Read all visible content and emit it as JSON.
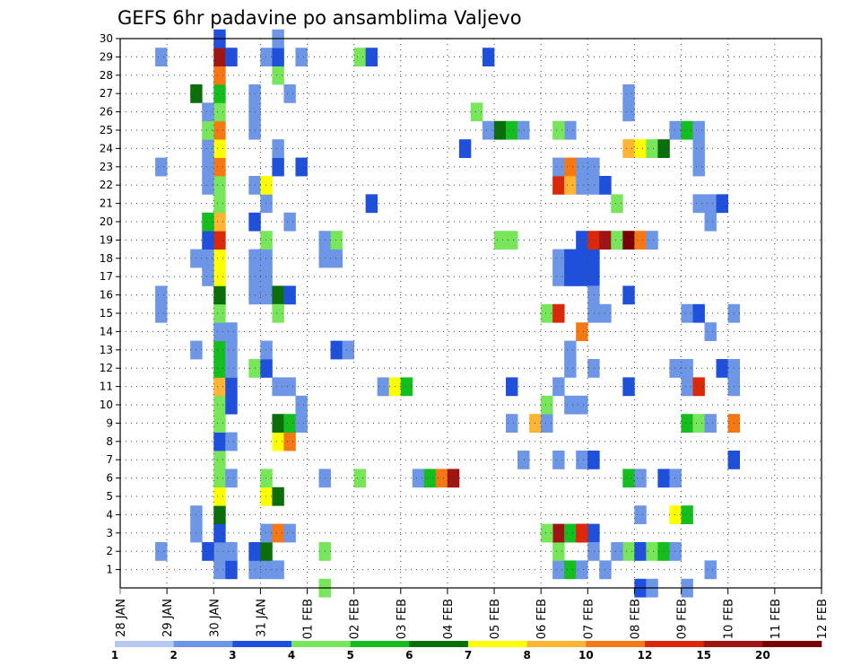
{
  "chart_data": {
    "type": "heatmap",
    "title": "GEFS 6hr padavine po ansamblima Valjevo",
    "y_ticks": [
      "1",
      "2",
      "3",
      "4",
      "5",
      "6",
      "7",
      "8",
      "9",
      "10",
      "11",
      "12",
      "13",
      "14",
      "15",
      "16",
      "17",
      "18",
      "19",
      "20",
      "21",
      "22",
      "23",
      "24",
      "25",
      "26",
      "27",
      "28",
      "29",
      "30"
    ],
    "x_ticks": [
      "28 JAN",
      "29 JAN",
      "30 JAN",
      "31 JAN",
      "01 FEB",
      "02 FEB",
      "03 FEB",
      "04 FEB",
      "05 FEB",
      "06 FEB",
      "07 FEB",
      "08 FEB",
      "09 FEB",
      "10 FEB",
      "11 FEB",
      "12 FEB"
    ],
    "colorbar": {
      "labels": [
        "1",
        "2",
        "3",
        "4",
        "5",
        "6",
        "7",
        "8",
        "10",
        "12",
        "15",
        "20"
      ],
      "colors": [
        "#b4c8f0",
        "#6e96e6",
        "#1e50dc",
        "#78e65a",
        "#14be1e",
        "#0a6e0a",
        "#ffff00",
        "#ffb432",
        "#f57814",
        "#dc280a",
        "#a01414",
        "#780000"
      ]
    },
    "cells": [
      [
        8,
        1,
        1
      ],
      [
        8,
        2,
        1
      ],
      [
        8,
        3,
        2
      ],
      [
        8,
        4,
        5
      ],
      [
        8,
        5,
        6
      ],
      [
        8,
        6,
        3
      ],
      [
        8,
        7,
        3
      ],
      [
        8,
        8,
        2
      ],
      [
        8,
        9,
        3
      ],
      [
        8,
        10,
        3
      ],
      [
        8,
        11,
        7
      ],
      [
        8,
        12,
        4
      ],
      [
        8,
        13,
        4
      ],
      [
        8,
        14,
        1
      ],
      [
        8,
        15,
        3
      ],
      [
        8,
        16,
        5
      ],
      [
        8,
        17,
        6
      ],
      [
        8,
        18,
        6
      ],
      [
        8,
        19,
        9
      ],
      [
        8,
        20,
        7
      ],
      [
        8,
        21,
        3
      ],
      [
        8,
        22,
        3
      ],
      [
        8,
        23,
        8
      ],
      [
        8,
        24,
        6
      ],
      [
        8,
        25,
        8
      ],
      [
        8,
        26,
        3
      ],
      [
        8,
        27,
        4
      ],
      [
        8,
        28,
        8
      ],
      [
        8,
        29,
        10
      ],
      [
        8,
        30,
        2
      ],
      [
        9,
        1,
        2
      ],
      [
        9,
        2,
        1
      ],
      [
        9,
        6,
        1
      ],
      [
        9,
        8,
        1
      ],
      [
        9,
        10,
        2
      ],
      [
        9,
        11,
        2
      ],
      [
        9,
        12,
        1
      ],
      [
        9,
        13,
        1
      ],
      [
        9,
        14,
        1
      ],
      [
        9,
        29,
        2
      ],
      [
        7,
        2,
        2
      ],
      [
        7,
        17,
        1
      ],
      [
        7,
        18,
        1
      ],
      [
        7,
        19,
        2
      ],
      [
        7,
        20,
        4
      ],
      [
        7,
        22,
        1
      ],
      [
        7,
        23,
        1
      ],
      [
        7,
        24,
        1
      ],
      [
        7,
        25,
        3
      ],
      [
        7,
        26,
        1
      ],
      [
        6,
        27,
        5
      ],
      [
        3,
        2,
        1
      ],
      [
        3,
        15,
        1
      ],
      [
        3,
        16,
        1
      ],
      [
        6,
        3,
        1
      ],
      [
        6,
        4,
        1
      ],
      [
        6,
        13,
        1
      ],
      [
        6,
        18,
        1
      ],
      [
        3,
        23,
        1
      ],
      [
        3,
        29,
        1
      ],
      [
        11,
        1,
        1
      ],
      [
        12,
        1,
        1
      ],
      [
        13,
        1,
        1
      ],
      [
        11,
        2,
        2
      ],
      [
        12,
        2,
        5
      ],
      [
        12,
        3,
        1
      ],
      [
        12,
        5,
        6
      ],
      [
        13,
        5,
        5
      ],
      [
        12,
        6,
        3
      ],
      [
        13,
        3,
        8
      ],
      [
        14,
        3,
        1
      ],
      [
        13,
        8,
        6
      ],
      [
        14,
        8,
        8
      ],
      [
        13,
        9,
        5
      ],
      [
        14,
        9,
        4
      ],
      [
        15,
        9,
        1
      ],
      [
        15,
        10,
        1
      ],
      [
        13,
        11,
        1
      ],
      [
        14,
        11,
        1
      ],
      [
        11,
        12,
        3
      ],
      [
        12,
        12,
        2
      ],
      [
        12,
        13,
        1
      ],
      [
        11,
        16,
        1
      ],
      [
        12,
        16,
        1
      ],
      [
        13,
        16,
        5
      ],
      [
        14,
        16,
        2
      ],
      [
        11,
        17,
        1
      ],
      [
        12,
        17,
        1
      ],
      [
        11,
        18,
        1
      ],
      [
        12,
        18,
        1
      ],
      [
        12,
        19,
        3
      ],
      [
        11,
        20,
        2
      ],
      [
        12,
        21,
        1
      ],
      [
        11,
        22,
        1
      ],
      [
        12,
        22,
        6
      ],
      [
        13,
        23,
        2
      ],
      [
        13,
        24,
        1
      ],
      [
        11,
        25,
        1
      ],
      [
        11,
        26,
        1
      ],
      [
        11,
        27,
        1
      ],
      [
        14,
        27,
        1
      ],
      [
        13,
        28,
        3
      ],
      [
        12,
        29,
        1
      ],
      [
        13,
        29,
        2
      ],
      [
        13,
        30,
        1
      ],
      [
        15,
        29,
        1
      ],
      [
        14,
        20,
        1
      ],
      [
        15,
        23,
        2
      ],
      [
        13,
        15,
        3
      ],
      [
        17,
        0,
        3
      ],
      [
        17,
        2,
        3
      ],
      [
        17,
        6,
        1
      ],
      [
        18,
        13,
        2
      ],
      [
        19,
        13,
        1
      ],
      [
        17,
        18,
        1
      ],
      [
        18,
        18,
        1
      ],
      [
        17,
        19,
        1
      ],
      [
        18,
        19,
        3
      ],
      [
        20,
        6,
        3
      ],
      [
        22,
        11,
        1
      ],
      [
        23,
        11,
        6
      ],
      [
        24,
        11,
        4
      ],
      [
        20,
        29,
        3
      ],
      [
        21,
        29,
        2
      ],
      [
        21,
        21,
        2
      ],
      [
        25,
        6,
        1
      ],
      [
        26,
        6,
        4
      ],
      [
        27,
        6,
        8
      ],
      [
        28,
        6,
        10
      ],
      [
        29,
        24,
        2
      ],
      [
        30,
        26,
        3
      ],
      [
        31,
        25,
        1
      ],
      [
        31,
        29,
        2
      ],
      [
        32,
        25,
        5
      ],
      [
        33,
        25,
        4
      ],
      [
        34,
        25,
        1
      ],
      [
        32,
        19,
        3
      ],
      [
        33,
        19,
        3
      ],
      [
        33,
        9,
        1
      ],
      [
        33,
        11,
        2
      ],
      [
        34,
        7,
        1
      ],
      [
        35,
        9,
        7
      ],
      [
        36,
        9,
        1
      ],
      [
        36,
        10,
        3
      ],
      [
        36,
        15,
        3
      ],
      [
        37,
        15,
        9
      ],
      [
        37,
        1,
        1
      ],
      [
        38,
        1,
        4
      ],
      [
        39,
        1,
        1
      ],
      [
        37,
        2,
        3
      ],
      [
        37,
        3,
        10
      ],
      [
        38,
        3,
        4
      ],
      [
        39,
        3,
        9
      ],
      [
        40,
        3,
        2
      ],
      [
        36,
        3,
        3
      ],
      [
        37,
        7,
        1
      ],
      [
        37,
        11,
        1
      ],
      [
        37,
        17,
        1
      ],
      [
        37,
        18,
        1
      ],
      [
        38,
        17,
        2
      ],
      [
        39,
        17,
        2
      ],
      [
        40,
        17,
        2
      ],
      [
        38,
        18,
        2
      ],
      [
        39,
        18,
        2
      ],
      [
        40,
        18,
        2
      ],
      [
        37,
        22,
        9
      ],
      [
        38,
        22,
        7
      ],
      [
        37,
        23,
        1
      ],
      [
        39,
        23,
        1
      ],
      [
        40,
        23,
        1
      ],
      [
        39,
        22,
        1
      ],
      [
        40,
        22,
        1
      ],
      [
        38,
        23,
        8
      ],
      [
        38,
        25,
        1
      ],
      [
        37,
        25,
        3
      ],
      [
        38,
        10,
        1
      ],
      [
        39,
        10,
        1
      ],
      [
        38,
        12,
        1
      ],
      [
        38,
        13,
        1
      ],
      [
        39,
        14,
        8
      ],
      [
        39,
        7,
        1
      ],
      [
        40,
        7,
        2
      ],
      [
        39,
        3,
        9
      ],
      [
        40,
        12,
        1
      ],
      [
        40,
        15,
        1
      ],
      [
        41,
        15,
        1
      ],
      [
        41,
        1,
        1
      ],
      [
        40,
        2,
        1
      ],
      [
        40,
        16,
        1
      ],
      [
        39,
        19,
        2
      ],
      [
        40,
        19,
        9
      ],
      [
        41,
        19,
        10
      ],
      [
        42,
        19,
        3
      ],
      [
        43,
        19,
        11
      ],
      [
        44,
        19,
        8
      ],
      [
        45,
        19,
        1
      ],
      [
        41,
        22,
        2
      ],
      [
        42,
        21,
        3
      ],
      [
        43,
        24,
        7
      ],
      [
        44,
        24,
        6
      ],
      [
        45,
        24,
        3
      ],
      [
        46,
        24,
        5
      ],
      [
        43,
        16,
        2
      ],
      [
        43,
        11,
        2
      ],
      [
        43,
        6,
        4
      ],
      [
        44,
        6,
        1
      ],
      [
        43,
        2,
        3
      ],
      [
        43,
        26,
        1
      ],
      [
        43,
        27,
        1
      ],
      [
        42,
        2,
        1
      ],
      [
        44,
        2,
        2
      ],
      [
        45,
        2,
        3
      ],
      [
        46,
        2,
        4
      ],
      [
        47,
        2,
        1
      ],
      [
        44,
        4,
        1
      ],
      [
        44,
        0,
        2
      ],
      [
        45,
        0,
        1
      ],
      [
        46,
        6,
        2
      ],
      [
        47,
        6,
        1
      ],
      [
        47,
        4,
        6
      ],
      [
        48,
        4,
        4
      ],
      [
        47,
        25,
        1
      ],
      [
        48,
        25,
        4
      ],
      [
        49,
        25,
        1
      ],
      [
        49,
        24,
        1
      ],
      [
        49,
        23,
        1
      ],
      [
        48,
        11,
        1
      ],
      [
        49,
        11,
        9
      ],
      [
        47,
        12,
        1
      ],
      [
        48,
        12,
        1
      ],
      [
        48,
        15,
        1
      ],
      [
        49,
        15,
        2
      ],
      [
        48,
        9,
        4
      ],
      [
        49,
        9,
        3
      ],
      [
        50,
        9,
        1
      ],
      [
        49,
        21,
        1
      ],
      [
        50,
        21,
        1
      ],
      [
        51,
        21,
        2
      ],
      [
        50,
        20,
        1
      ],
      [
        50,
        14,
        1
      ],
      [
        51,
        12,
        2
      ],
      [
        52,
        12,
        1
      ],
      [
        52,
        15,
        1
      ],
      [
        52,
        11,
        1
      ],
      [
        50,
        1,
        1
      ],
      [
        52,
        9,
        8
      ],
      [
        52,
        7,
        2
      ],
      [
        48,
        0,
        1
      ]
    ]
  }
}
